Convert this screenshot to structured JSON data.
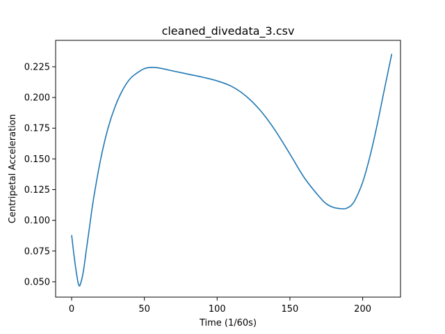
{
  "chart_data": {
    "type": "line",
    "title": "cleaned_divedata_3.csv",
    "xlabel": "Time (1/60s)",
    "ylabel": "Centripetal Acceleration",
    "xlim": [
      -11,
      226
    ],
    "ylim": [
      0.0375,
      0.2465
    ],
    "xticks": [
      0,
      50,
      100,
      150,
      200
    ],
    "xtick_labels": [
      "0",
      "50",
      "100",
      "150",
      "200"
    ],
    "yticks": [
      0.05,
      0.075,
      0.1,
      0.125,
      0.15,
      0.175,
      0.2,
      0.225
    ],
    "ytick_labels": [
      "0.050",
      "0.075",
      "0.100",
      "0.125",
      "0.150",
      "0.175",
      "0.200",
      "0.225"
    ],
    "grid": false,
    "color": "#1f77b4",
    "series": [
      {
        "x": [
          0,
          2,
          4,
          5,
          6,
          8,
          10,
          12,
          15,
          20,
          25,
          30,
          35,
          40,
          45,
          50,
          55,
          60,
          70,
          80,
          90,
          100,
          110,
          120,
          130,
          140,
          150,
          160,
          170,
          175,
          180,
          185,
          188,
          190,
          192,
          195,
          200,
          205,
          210,
          215,
          220
        ],
        "y": [
          0.088,
          0.068,
          0.052,
          0.047,
          0.048,
          0.058,
          0.075,
          0.092,
          0.117,
          0.15,
          0.175,
          0.193,
          0.206,
          0.215,
          0.22,
          0.2235,
          0.2245,
          0.224,
          0.2215,
          0.219,
          0.2165,
          0.2135,
          0.209,
          0.201,
          0.189,
          0.173,
          0.154,
          0.1345,
          0.1195,
          0.1135,
          0.1105,
          0.1095,
          0.1095,
          0.1105,
          0.112,
          0.117,
          0.131,
          0.152,
          0.178,
          0.207,
          0.2355
        ]
      }
    ]
  }
}
